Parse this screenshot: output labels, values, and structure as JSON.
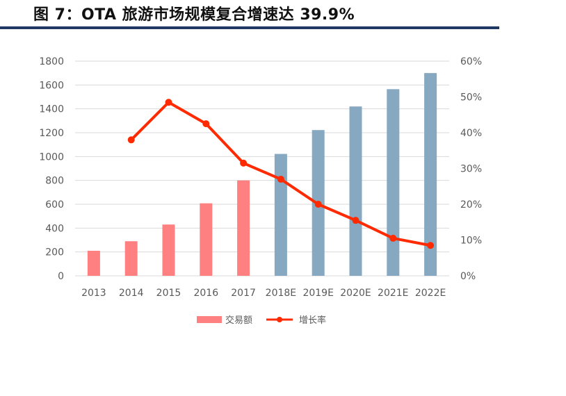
{
  "header": {
    "title": "图 7：OTA 旅游市场规模复合增速达 39.9%"
  },
  "colors": {
    "actual": "#ff8080",
    "forecast": "#86a8c0",
    "line": "#ff2a00",
    "rule": "#1f3864",
    "grid": "#d9d9d9"
  },
  "chart_data": {
    "type": "bar",
    "title": "OTA 旅游市场规模复合增速达 39.9%",
    "categories": [
      "2013",
      "2014",
      "2015",
      "2016",
      "2017",
      "2018E",
      "2019E",
      "2020E",
      "2021E",
      "2022E"
    ],
    "ylim": [
      0,
      1800
    ],
    "y_ticks": [
      "0",
      "200",
      "400",
      "600",
      "800",
      "1000",
      "1200",
      "1400",
      "1600",
      "1800"
    ],
    "y2lim": [
      0,
      60
    ],
    "y2_ticks": [
      "0%",
      "10%",
      "20%",
      "30%",
      "40%",
      "50%",
      "60%"
    ],
    "series": [
      {
        "name": "交易额",
        "kind": "bar",
        "values": [
          210,
          290,
          430,
          608,
          800,
          1022,
          1222,
          1420,
          1565,
          1700
        ],
        "forecast_from_index": 5
      },
      {
        "name": "增长率",
        "kind": "line",
        "axis": "right",
        "unit": "%",
        "values": [
          null,
          38,
          48.5,
          42.5,
          31.5,
          27,
          20,
          15.5,
          10.5,
          8.5
        ]
      }
    ],
    "legend_position": "bottom",
    "grid": true
  }
}
